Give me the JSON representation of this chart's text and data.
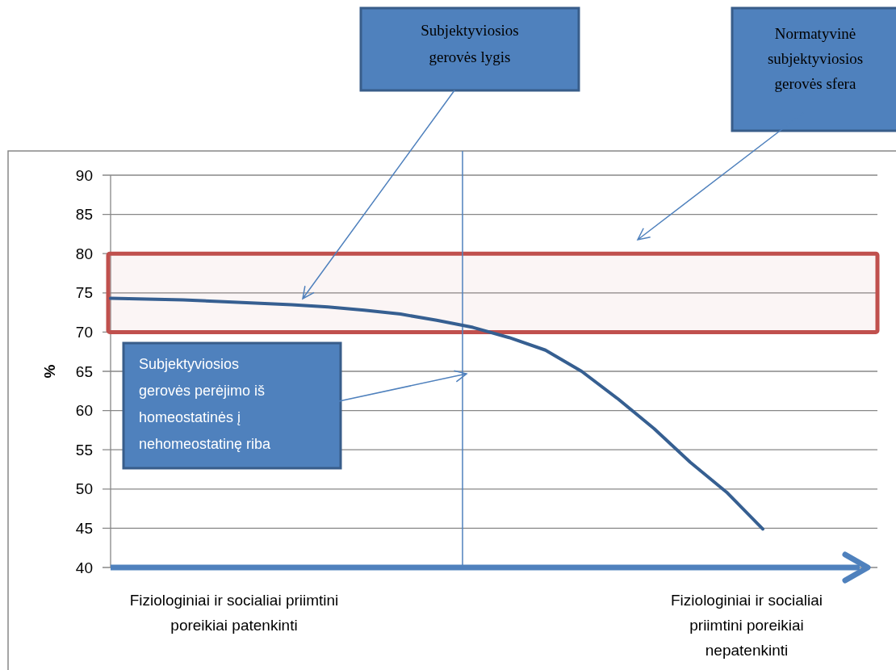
{
  "chart_data": {
    "type": "line",
    "ylabel": "%",
    "categories": [
      null,
      null,
      null,
      null,
      null,
      null,
      null,
      null,
      null,
      null,
      null,
      null,
      null,
      null,
      null,
      null,
      null,
      null,
      null
    ],
    "series": [
      {
        "color": "#365f91",
        "values": [
          74.3,
          74.2,
          74.1,
          73.9,
          73.7,
          73.5,
          73.2,
          72.8,
          72.3,
          71.5,
          70.6,
          69.3,
          67.7,
          65.0,
          61.5,
          57.7,
          53.4,
          49.6,
          44.9
        ]
      }
    ],
    "ylim": [
      40,
      90
    ],
    "yticks": [
      40,
      45,
      50,
      55,
      60,
      65,
      70,
      75,
      80,
      85,
      90
    ],
    "tick_labels": "y",
    "grid": "y",
    "bands": [
      {
        "axis": "y",
        "from": 70,
        "to": 80,
        "color": "#c0504d"
      }
    ],
    "annotations": [
      "Subjektyviosios gerovės lygis",
      "Subjektyviosios gerovės perėjimo iš homeostatinės į nehomeostatinę riba",
      "Normatyvinė subjektyviosios gerovės sfera",
      "Fiziologiniai ir socialiai priimtini poreikiai patenkinti",
      "Fiziologiniai ir socialiai priimtini poreikiai nepatenkinti"
    ]
  }
}
